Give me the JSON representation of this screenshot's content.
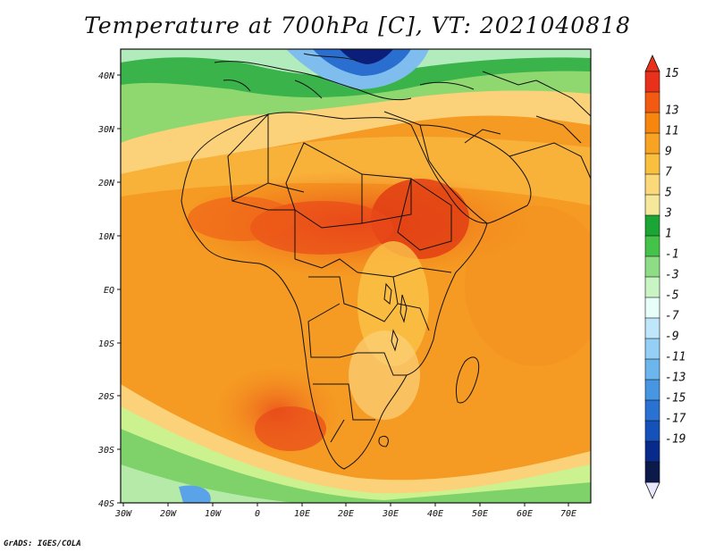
{
  "title": "Temperature at 700hPa [C], VT: 2021040818",
  "credit": "GrADS: IGES/COLA",
  "map": {
    "lat_labels": [
      "40N",
      "30N",
      "20N",
      "10N",
      "EQ",
      "10S",
      "20S",
      "30S",
      "40S"
    ],
    "lon_labels": [
      "30W",
      "20W",
      "10W",
      "0",
      "10E",
      "20E",
      "30E",
      "40E",
      "50E",
      "60E",
      "70E"
    ]
  },
  "colorbar": {
    "labels": [
      "15",
      "13",
      "11",
      "9",
      "7",
      "5",
      "3",
      "1",
      "-1",
      "-3",
      "-5",
      "-7",
      "-9",
      "-11",
      "-13",
      "-15",
      "-17",
      "-19"
    ],
    "colors": [
      "#e8301a",
      "#f25a12",
      "#f7860f",
      "#f9a325",
      "#fbbf3f",
      "#fbd87a",
      "#f5e89a",
      "#1aa534",
      "#45c24a",
      "#8fdc86",
      "#c8f5c3",
      "#e6fff9",
      "#bfe6fb",
      "#95cff5",
      "#6cb5ed",
      "#4796e2",
      "#2a72d2",
      "#1451b8",
      "#082a8a",
      "#0b1a4a"
    ],
    "top_color": "#e8301a",
    "bottom_color": "#e8e8ff"
  }
}
